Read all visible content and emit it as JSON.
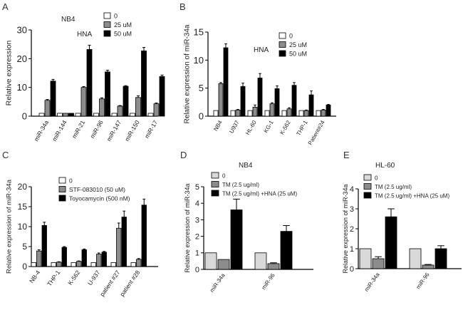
{
  "colors": {
    "white_bar": "#ffffff",
    "light_bar": "#d9d9d9",
    "gray_bar": "#8c8c8c",
    "black_bar": "#000000",
    "axis": "#000000"
  },
  "chart_data": [
    {
      "panel": "A",
      "type": "bar",
      "title": "NB4",
      "annotation": "HNA",
      "xlabel": "",
      "ylabel": "Relative expression",
      "ylim": [
        0,
        30
      ],
      "yticks": [
        0,
        10,
        20,
        30
      ],
      "legend_position": "top-right",
      "categories": [
        "miR-34a",
        "miR-144",
        "miR-21",
        "miR-96",
        "miR-147",
        "miR-150",
        "miR-17"
      ],
      "series": [
        {
          "name": "0",
          "values": [
            1,
            1,
            1,
            1,
            1,
            1,
            1
          ],
          "errors": [
            0,
            0,
            0,
            0,
            0,
            0,
            0
          ]
        },
        {
          "name": "25 uM",
          "values": [
            5.5,
            1,
            10,
            6,
            3.5,
            6.5,
            4.3
          ],
          "errors": [
            0.3,
            0,
            0.3,
            0.4,
            0.2,
            0.6,
            0.3
          ]
        },
        {
          "name": "50 uM",
          "values": [
            12.2,
            1,
            23.2,
            15.4,
            10.4,
            22.7,
            13.8
          ],
          "errors": [
            0.6,
            0,
            1.5,
            0.6,
            0.2,
            1.2,
            0.5
          ]
        }
      ]
    },
    {
      "panel": "B",
      "type": "bar",
      "title": "",
      "annotation": "HNA",
      "xlabel": "",
      "ylabel": "Relative expression of miR-34a",
      "ylim": [
        0,
        15
      ],
      "yticks": [
        0,
        5,
        10,
        15
      ],
      "legend_position": "top-right",
      "categories": [
        "NB4",
        "U937",
        "HL-60",
        "KG-1",
        "K-562",
        "THP-1",
        "Patient#24"
      ],
      "series": [
        {
          "name": "0",
          "values": [
            1,
            1,
            1,
            1,
            1,
            1,
            1
          ],
          "errors": [
            0,
            0,
            0,
            0,
            0,
            0,
            0
          ]
        },
        {
          "name": "25 uM",
          "values": [
            5.8,
            1.1,
            1.6,
            2.2,
            1.3,
            1,
            1.1
          ],
          "errors": [
            0.2,
            0.1,
            0.4,
            0.2,
            0.2,
            0.1,
            0.1
          ]
        },
        {
          "name": "50 uM",
          "values": [
            12.2,
            5.3,
            6.8,
            4.9,
            5.5,
            3.8,
            2
          ],
          "errors": [
            0.7,
            0.6,
            0.8,
            0.5,
            0.5,
            0.7,
            0.1
          ]
        }
      ]
    },
    {
      "panel": "C",
      "type": "bar",
      "title": "",
      "annotation": "",
      "xlabel": "",
      "ylabel": "Relative expression of miR-34a",
      "ylim": [
        0,
        20
      ],
      "yticks": [
        0,
        5,
        10,
        15,
        20
      ],
      "legend_position": "top-left",
      "categories": [
        "NB-4",
        "THP-1",
        "K-562",
        "U-937",
        "patient #27",
        "patient #28"
      ],
      "series": [
        {
          "name": "0",
          "values": [
            1,
            1,
            1,
            1,
            1,
            1
          ],
          "errors": [
            0,
            0,
            0,
            0,
            0,
            0
          ]
        },
        {
          "name": "STF-083010 (50 uM)",
          "values": [
            3.9,
            1.1,
            1.3,
            3.1,
            9.6,
            1.8
          ],
          "errors": [
            0.3,
            0.1,
            0.1,
            0.3,
            1.3,
            0.2
          ]
        },
        {
          "name": "Toyocamycin (500 nM)",
          "values": [
            10.3,
            4.8,
            4.2,
            3.6,
            12.4,
            15.4
          ],
          "errors": [
            0.8,
            0.2,
            0.2,
            0.2,
            1.5,
            1.5
          ]
        }
      ]
    },
    {
      "panel": "D",
      "type": "bar",
      "title": "NB4",
      "annotation": "",
      "xlabel": "",
      "ylabel": "Relative expression of miR-34a",
      "ylim": [
        0,
        5
      ],
      "yticks": [
        0,
        1,
        2,
        3,
        4,
        5
      ],
      "legend_position": "top-left",
      "categories": [
        "miR-34a",
        "miR-96"
      ],
      "series": [
        {
          "name": "0",
          "values": [
            1,
            1
          ],
          "errors": [
            0,
            0
          ]
        },
        {
          "name": "TM (2.5 ug/ml)",
          "values": [
            0.6,
            0.35
          ],
          "errors": [
            0,
            0.05
          ]
        },
        {
          "name": "TM (2.5 ug/ml) +HNA (25 uM)",
          "values": [
            3.6,
            2.3
          ],
          "errors": [
            0.65,
            0.35
          ]
        }
      ]
    },
    {
      "panel": "E",
      "type": "bar",
      "title": "HL-60",
      "annotation": "",
      "xlabel": "",
      "ylabel": "Relative expression of miR-34a",
      "ylim": [
        0,
        4
      ],
      "yticks": [
        0,
        1,
        2,
        3,
        4
      ],
      "legend_position": "top-left",
      "categories": [
        "miR-34a",
        "miR-96"
      ],
      "series": [
        {
          "name": "0",
          "values": [
            1,
            1
          ],
          "errors": [
            0,
            0
          ]
        },
        {
          "name": "TM (2.5 ug/ml)",
          "values": [
            0.5,
            0.18
          ],
          "errors": [
            0.1,
            0.03
          ]
        },
        {
          "name": "TM (2.5 ug/ml) +HNA (25 uM)",
          "values": [
            2.6,
            1
          ],
          "errors": [
            0.4,
            0.15
          ]
        }
      ]
    }
  ]
}
